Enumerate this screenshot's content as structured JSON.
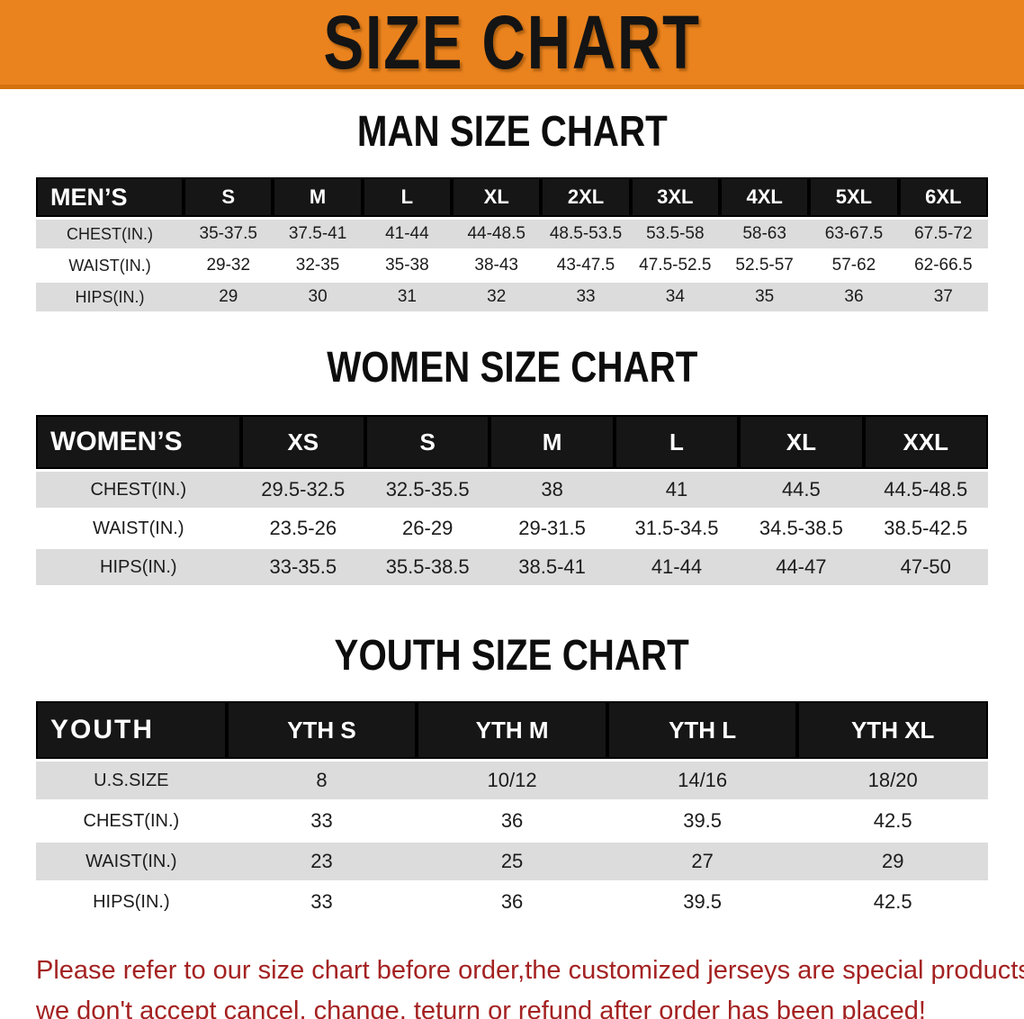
{
  "banner": {
    "title": "SIZE CHART",
    "bg_color": "#ea831e",
    "text_color": "#141414"
  },
  "sections": [
    {
      "heading": "MAN SIZE CHART",
      "row_header": "MEN’S",
      "columns": [
        "S",
        "M",
        "L",
        "XL",
        "2XL",
        "3XL",
        "4XL",
        "5XL",
        "6XL"
      ],
      "rows": [
        {
          "label": "CHEST(IN.)",
          "values": [
            "35-37.5",
            "37.5-41",
            "41-44",
            "44-48.5",
            "48.5-53.5",
            "53.5-58",
            "58-63",
            "63-67.5",
            "67.5-72"
          ]
        },
        {
          "label": "WAIST(IN.)",
          "values": [
            "29-32",
            "32-35",
            "35-38",
            "38-43",
            "43-47.5",
            "47.5-52.5",
            "52.5-57",
            "57-62",
            "62-66.5"
          ]
        },
        {
          "label": "HIPS(IN.)",
          "values": [
            "29",
            "30",
            "31",
            "32",
            "33",
            "34",
            "35",
            "36",
            "37"
          ]
        }
      ]
    },
    {
      "heading": "WOMEN SIZE CHART",
      "row_header": "WOMEN’S",
      "columns": [
        "XS",
        "S",
        "M",
        "L",
        "XL",
        "XXL"
      ],
      "rows": [
        {
          "label": "CHEST(IN.)",
          "values": [
            "29.5-32.5",
            "32.5-35.5",
            "38",
            "41",
            "44.5",
            "44.5-48.5"
          ]
        },
        {
          "label": "WAIST(IN.)",
          "values": [
            "23.5-26",
            "26-29",
            "29-31.5",
            "31.5-34.5",
            "34.5-38.5",
            "38.5-42.5"
          ]
        },
        {
          "label": "HIPS(IN.)",
          "values": [
            "33-35.5",
            "35.5-38.5",
            "38.5-41",
            "41-44",
            "44-47",
            "47-50"
          ]
        }
      ]
    },
    {
      "heading": "YOUTH SIZE CHART",
      "row_header": "YOUTH",
      "columns": [
        "YTH S",
        "YTH M",
        "YTH L",
        "YTH XL"
      ],
      "rows": [
        {
          "label": "U.S.SIZE",
          "values": [
            "8",
            "10/12",
            "14/16",
            "18/20"
          ]
        },
        {
          "label": "CHEST(IN.)",
          "values": [
            "33",
            "36",
            "39.5",
            "42.5"
          ]
        },
        {
          "label": "WAIST(IN.)",
          "values": [
            "23",
            "25",
            "27",
            "29"
          ]
        },
        {
          "label": "HIPS(IN.)",
          "values": [
            "33",
            "36",
            "39.5",
            "42.5"
          ]
        }
      ]
    }
  ],
  "disclaimer": {
    "line1": "Please refer to our size chart before order,the customized jerseys are special products,",
    "line2": "we don't accept cancel, change, teturn or refund after order has been placed!",
    "color": "#a42222"
  },
  "colors": {
    "header_band": "#161616",
    "row_gray": "#dcdcdc",
    "row_white": "#ffffff",
    "banner_orange": "#ea831e"
  }
}
